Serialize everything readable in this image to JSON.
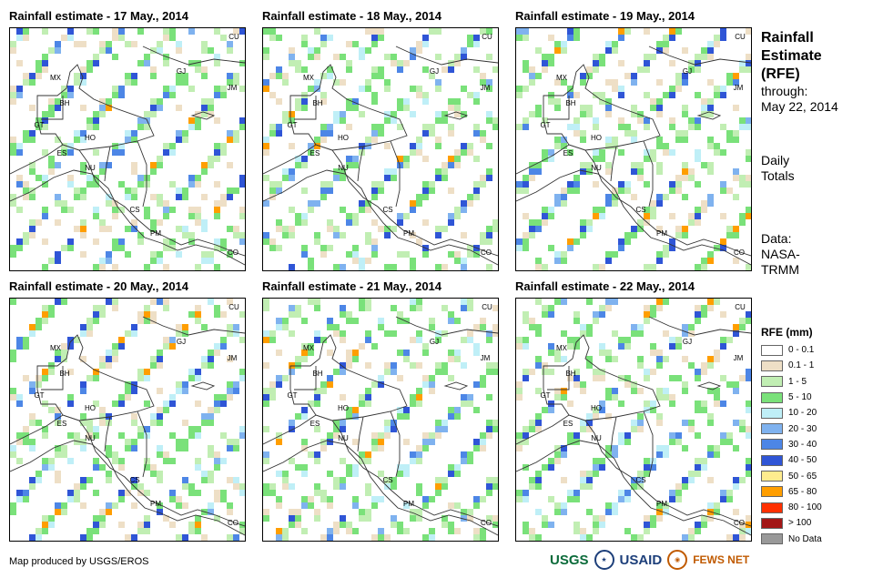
{
  "panels": [
    {
      "title": "Rainfall estimate - 17 May., 2014"
    },
    {
      "title": "Rainfall estimate - 18 May., 2014"
    },
    {
      "title": "Rainfall estimate - 19 May., 2014"
    },
    {
      "title": "Rainfall estimate - 20 May., 2014"
    },
    {
      "title": "Rainfall estimate - 21 May., 2014"
    },
    {
      "title": "Rainfall estimate - 22 May., 2014"
    }
  ],
  "country_labels": [
    "CU",
    "MX",
    "GJ",
    "JM",
    "BH",
    "GT",
    "HO",
    "ES",
    "NU",
    "CS",
    "PM",
    "CO"
  ],
  "sidebar": {
    "title_lines": [
      "Rainfall",
      "Estimate",
      "(RFE)"
    ],
    "through_label": "through:",
    "through_date": "May 22, 2014",
    "totals_lines": [
      "Daily",
      "Totals"
    ],
    "data_lines": [
      "Data:",
      "NASA-",
      "TRMM"
    ]
  },
  "legend": {
    "title": "RFE (mm)",
    "items": [
      {
        "label": "0 - 0.1",
        "color": "#ffffff"
      },
      {
        "label": "0.1 - 1",
        "color": "#eedfc6"
      },
      {
        "label": "1 - 5",
        "color": "#c1eeb3"
      },
      {
        "label": "5 - 10",
        "color": "#7ae17a"
      },
      {
        "label": "10 - 20",
        "color": "#bfeff7"
      },
      {
        "label": "20 - 30",
        "color": "#7fb2ef"
      },
      {
        "label": "30 - 40",
        "color": "#4d86e6"
      },
      {
        "label": "40 - 50",
        "color": "#2f55d6"
      },
      {
        "label": "50 - 65",
        "color": "#ffec8e"
      },
      {
        "label": "65 - 80",
        "color": "#ff9e00"
      },
      {
        "label": "80 - 100",
        "color": "#ff3000"
      },
      {
        "label": "> 100",
        "color": "#a31616"
      },
      {
        "label": "No Data",
        "color": "#999999"
      }
    ]
  },
  "credit": "Map produced by USGS/EROS",
  "logos": {
    "usgs": "USGS",
    "usaid": "USAID",
    "fews": "FEWS NET"
  }
}
